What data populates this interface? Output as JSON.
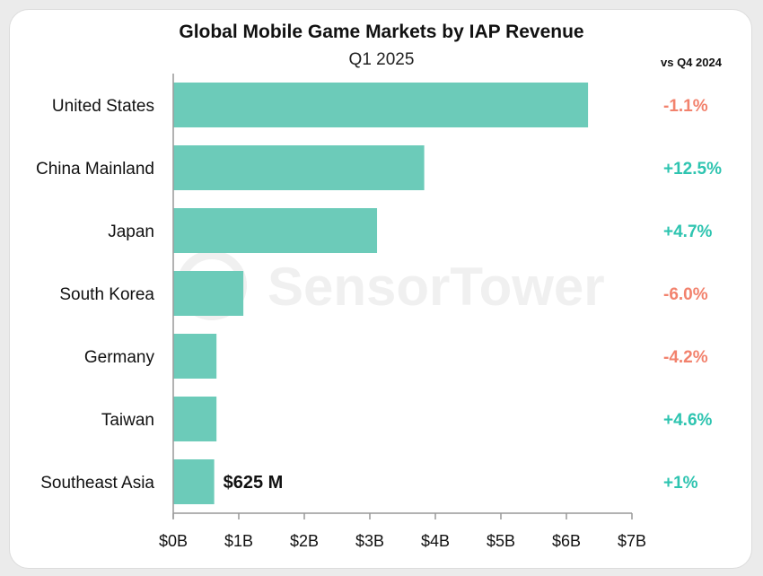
{
  "header": {
    "title": "Global Mobile Game Markets by IAP Revenue",
    "subtitle": "Q1 2025",
    "compare_label": "vs Q4 2024"
  },
  "watermark": "SensorTower",
  "colors": {
    "bar": "#6ccbb9",
    "positive": "#2ec4b0",
    "negative": "#f2826d",
    "axis": "#999999",
    "watermark": "#f0f0f0"
  },
  "chart_data": {
    "type": "bar",
    "orientation": "horizontal",
    "title": "Global Mobile Game Markets by IAP Revenue",
    "subtitle": "Q1 2025",
    "categories": [
      "United States",
      "China Mainland",
      "Japan",
      "South Korea",
      "Germany",
      "Taiwan",
      "Southeast Asia"
    ],
    "values": [
      6.33,
      3.83,
      3.11,
      1.07,
      0.66,
      0.66,
      0.625
    ],
    "unit": "billion USD",
    "value_labels": [
      "",
      "",
      "",
      "",
      "",
      "",
      "$625 M"
    ],
    "change_vs_q4_2024": [
      "-1.1%",
      "+12.5%",
      "+4.7%",
      "-6.0%",
      "-4.2%",
      "+4.6%",
      "+1%"
    ],
    "xlim": [
      0,
      7
    ],
    "xticks": [
      0,
      1,
      2,
      3,
      4,
      5,
      6,
      7
    ],
    "xtick_labels": [
      "$0B",
      "$1B",
      "$2B",
      "$3B",
      "$4B",
      "$5B",
      "$6B",
      "$7B"
    ],
    "grid": false
  }
}
